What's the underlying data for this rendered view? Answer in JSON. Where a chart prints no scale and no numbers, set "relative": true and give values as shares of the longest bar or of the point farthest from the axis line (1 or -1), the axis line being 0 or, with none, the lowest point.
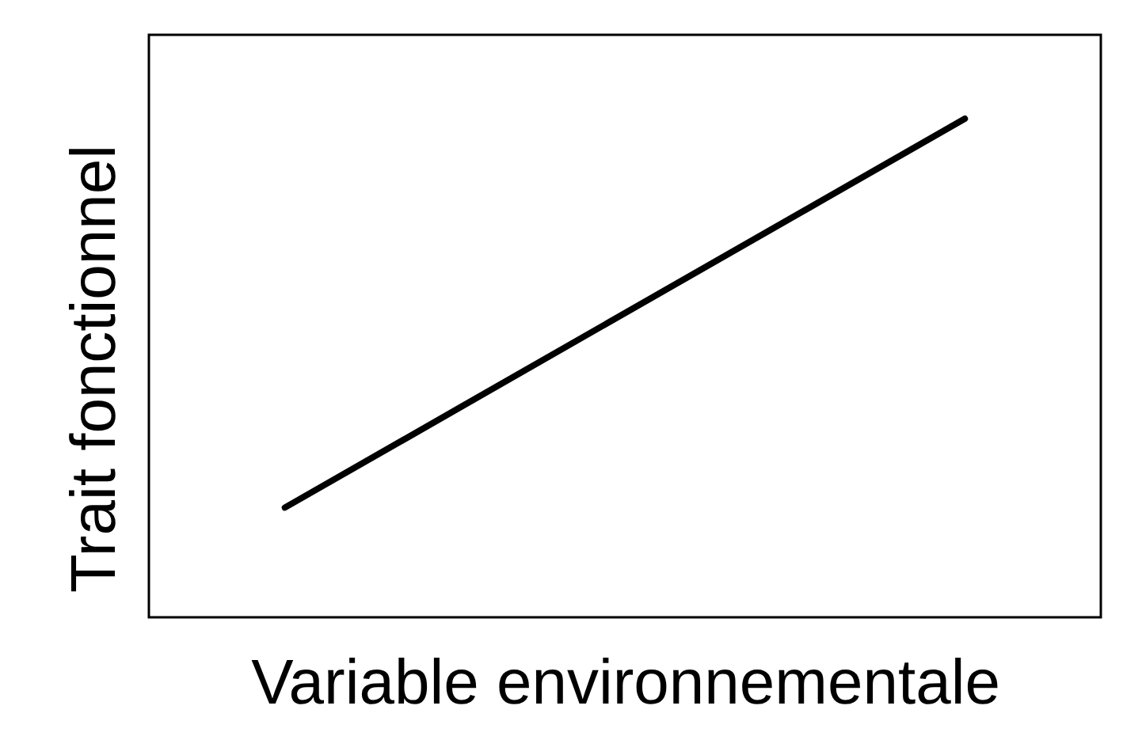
{
  "chart_data": {
    "type": "line",
    "xlabel": "Variable environnementale",
    "ylabel": "Trait fonctionnel",
    "categories": [
      null,
      null
    ],
    "values": [
      0.22,
      1
    ],
    "color": "#000000",
    "relative": true
  }
}
